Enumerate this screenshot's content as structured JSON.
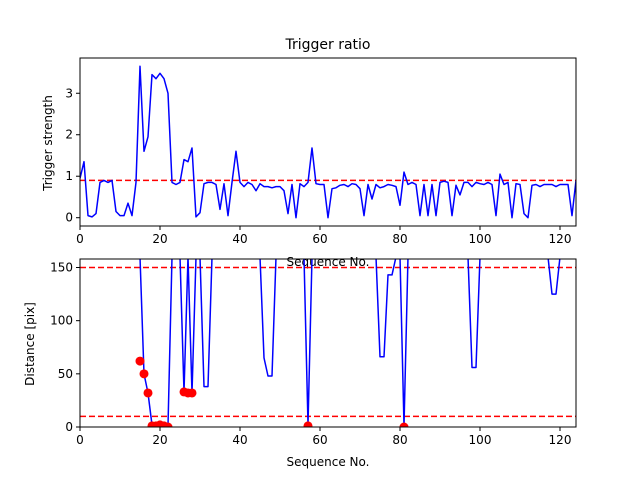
{
  "chart_data": [
    {
      "type": "line",
      "title": "Trigger ratio",
      "xlabel": "Sequence No.",
      "ylabel": "Trigger strength",
      "xlim": [
        0,
        124
      ],
      "ylim": [
        -0.2,
        3.85
      ],
      "xticks": [
        0,
        20,
        40,
        60,
        80,
        100,
        120
      ],
      "yticks": [
        0,
        1,
        2,
        3
      ],
      "grid": false,
      "colors": {
        "line": "#0000ff",
        "threshold": "#ff0000"
      },
      "threshold": 0.9,
      "series": [
        {
          "x": [
            0,
            1,
            2,
            3,
            4,
            5,
            6,
            7,
            8,
            9,
            10,
            11,
            12,
            13,
            14,
            15,
            16,
            17,
            18,
            19,
            20,
            21,
            22,
            23,
            24,
            25,
            26,
            27,
            28,
            29,
            30,
            31,
            32,
            33,
            34,
            35,
            36,
            37,
            38,
            39,
            40,
            41,
            42,
            43,
            44,
            45,
            46,
            47,
            48,
            49,
            50,
            51,
            52,
            53,
            54,
            55,
            56,
            57,
            58,
            59,
            60,
            61,
            62,
            63,
            64,
            65,
            66,
            67,
            68,
            69,
            70,
            71,
            72,
            73,
            74,
            75,
            76,
            77,
            78,
            79,
            80,
            81,
            82,
            83,
            84,
            85,
            86,
            87,
            88,
            89,
            90,
            91,
            92,
            93,
            94,
            95,
            96,
            97,
            98,
            99,
            100,
            101,
            102,
            103,
            104,
            105,
            106,
            107,
            108,
            109,
            110,
            111,
            112,
            113,
            114,
            115,
            116,
            117,
            118,
            119,
            120,
            121,
            122,
            123,
            124
          ],
          "y": [
            0.95,
            1.35,
            0.05,
            0.02,
            0.1,
            0.85,
            0.9,
            0.85,
            0.9,
            0.15,
            0.05,
            0.05,
            0.35,
            0.05,
            0.85,
            3.65,
            1.6,
            1.95,
            3.45,
            3.35,
            3.48,
            3.35,
            3.0,
            0.85,
            0.8,
            0.85,
            1.4,
            1.35,
            1.68,
            0.02,
            0.12,
            0.82,
            0.85,
            0.85,
            0.8,
            0.2,
            0.82,
            0.05,
            0.85,
            1.6,
            0.85,
            0.75,
            0.85,
            0.8,
            0.65,
            0.82,
            0.75,
            0.75,
            0.72,
            0.75,
            0.75,
            0.65,
            0.1,
            0.8,
            0.0,
            0.82,
            0.75,
            0.85,
            1.68,
            0.82,
            0.8,
            0.8,
            0.0,
            0.7,
            0.72,
            0.78,
            0.8,
            0.75,
            0.82,
            0.8,
            0.7,
            0.05,
            0.8,
            0.45,
            0.8,
            0.72,
            0.75,
            0.8,
            0.78,
            0.75,
            0.3,
            1.1,
            0.8,
            0.85,
            0.8,
            0.05,
            0.8,
            0.05,
            0.8,
            0.05,
            0.85,
            0.88,
            0.85,
            0.05,
            0.78,
            0.55,
            0.85,
            0.85,
            0.75,
            0.85,
            0.82,
            0.8,
            0.85,
            0.8,
            0.05,
            1.05,
            0.8,
            0.85,
            0.0,
            0.82,
            0.8,
            0.1,
            0.0,
            0.78,
            0.8,
            0.75,
            0.8,
            0.8,
            0.8,
            0.75,
            0.8,
            0.8,
            0.8,
            0.05,
            0.9
          ]
        }
      ]
    },
    {
      "type": "line",
      "title": "",
      "xlabel": "Sequence No.",
      "ylabel": "Distance [pix]",
      "xlim": [
        0,
        124
      ],
      "ylim": [
        0,
        158
      ],
      "xticks": [
        0,
        20,
        40,
        60,
        80,
        100,
        120
      ],
      "yticks": [
        0,
        50,
        100,
        150
      ],
      "grid": false,
      "colors": {
        "line": "#0000ff",
        "markers": "#ff0000",
        "threshold": "#ff0000"
      },
      "thresholds": [
        150,
        10
      ],
      "series": [
        {
          "x": [
            15,
            16,
            17,
            18,
            19,
            20,
            21,
            22,
            23,
            24,
            25,
            26,
            27,
            28,
            29,
            30,
            31,
            32,
            33,
            34,
            35,
            36,
            37,
            38,
            39,
            40,
            41,
            42,
            43,
            44,
            45,
            46,
            47,
            48,
            49,
            50,
            51,
            52,
            53,
            54,
            55,
            56,
            57,
            58,
            59,
            60,
            61,
            62,
            63,
            64,
            65,
            66,
            67,
            68,
            69,
            70,
            71,
            72,
            73,
            74,
            75,
            76,
            77,
            78,
            79,
            80,
            81,
            82,
            83,
            84,
            85,
            86,
            87,
            88,
            89,
            90,
            91,
            92,
            93,
            94,
            95,
            96,
            97,
            98,
            99,
            100,
            101,
            102,
            103,
            104,
            105,
            106,
            107,
            108,
            109,
            110,
            111,
            112,
            113,
            114,
            115,
            116,
            117,
            118,
            119,
            120
          ],
          "y": [
            160,
            50,
            32,
            2,
            2,
            3,
            2,
            1,
            160,
            160,
            160,
            33,
            160,
            32,
            160,
            160,
            38,
            38,
            160,
            160,
            160,
            160,
            160,
            160,
            160,
            160,
            160,
            160,
            160,
            160,
            160,
            65,
            48,
            48,
            160,
            160,
            160,
            160,
            160,
            160,
            160,
            160,
            2,
            160,
            160,
            160,
            160,
            160,
            160,
            160,
            160,
            160,
            160,
            160,
            160,
            160,
            160,
            160,
            160,
            160,
            66,
            66,
            143,
            143,
            160,
            160,
            1,
            160,
            160,
            160,
            160,
            160,
            160,
            160,
            160,
            160,
            160,
            160,
            160,
            160,
            160,
            160,
            160,
            56,
            56,
            160,
            160,
            160,
            160,
            160,
            160,
            160,
            160,
            160,
            160,
            160,
            160,
            160,
            160,
            160,
            160,
            160,
            160,
            125,
            125,
            160
          ]
        },
        {
          "name": "markers",
          "x": [
            15,
            16,
            17,
            18,
            19,
            20,
            21,
            22,
            26,
            27,
            28,
            57,
            81
          ],
          "y": [
            62,
            50,
            32,
            1,
            1,
            2,
            1,
            0,
            33,
            32,
            32,
            1,
            0
          ]
        }
      ]
    }
  ]
}
